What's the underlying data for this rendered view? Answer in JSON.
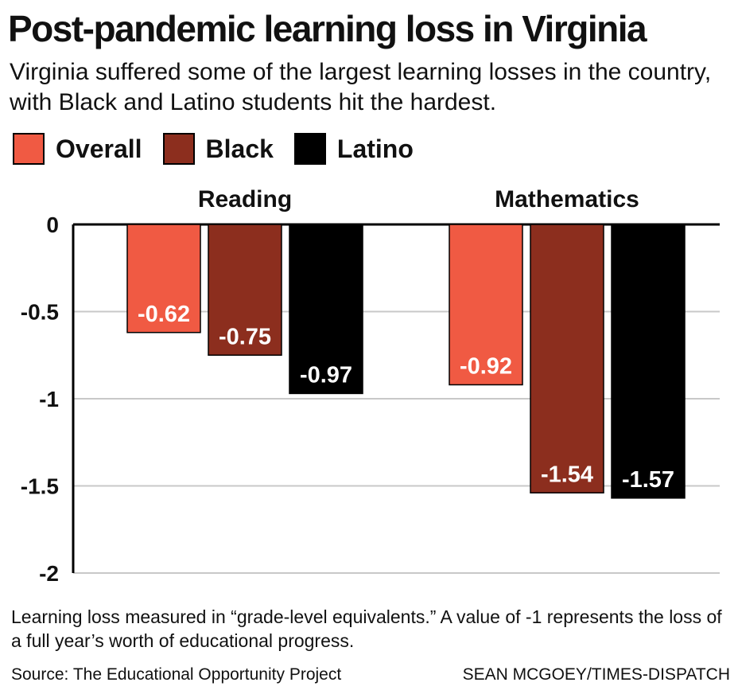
{
  "header": {
    "title": "Post-pandemic learning loss in Virginia",
    "subtitle": "Virginia suffered some of the largest learning losses in the country, with Black and Latino students hit the hardest."
  },
  "footer": {
    "note": "Learning loss measured in “grade-level equivalents.” A value of -1 represents the loss of a full year’s worth of educational progress.",
    "source": "Source: The Educational Opportunity Project",
    "credit": "SEAN MCGOEY/TIMES-DISPATCH"
  },
  "chart_data": {
    "type": "bar",
    "categories": [
      "Reading",
      "Mathematics"
    ],
    "series": [
      {
        "name": "Overall",
        "color": "#f05a43",
        "values": [
          -0.62,
          -0.92
        ],
        "labels": [
          "-0.62",
          "-0.92"
        ]
      },
      {
        "name": "Black",
        "color": "#8c2e1e",
        "values": [
          -0.75,
          -1.54
        ],
        "labels": [
          "-0.75",
          "-1.54"
        ]
      },
      {
        "name": "Latino",
        "color": "#000000",
        "values": [
          -0.97,
          -1.57
        ],
        "labels": [
          "-0.97",
          "-1.57"
        ]
      }
    ],
    "yticks": [
      "0",
      "-0.5",
      "-1",
      "-1.5",
      "-2"
    ],
    "ylim": [
      -2,
      0
    ],
    "grid": true,
    "legend_position": "top-left",
    "gridline_color": "#c8c8c8",
    "axis_color": "#000000",
    "data_label_color": "#ffffff"
  }
}
